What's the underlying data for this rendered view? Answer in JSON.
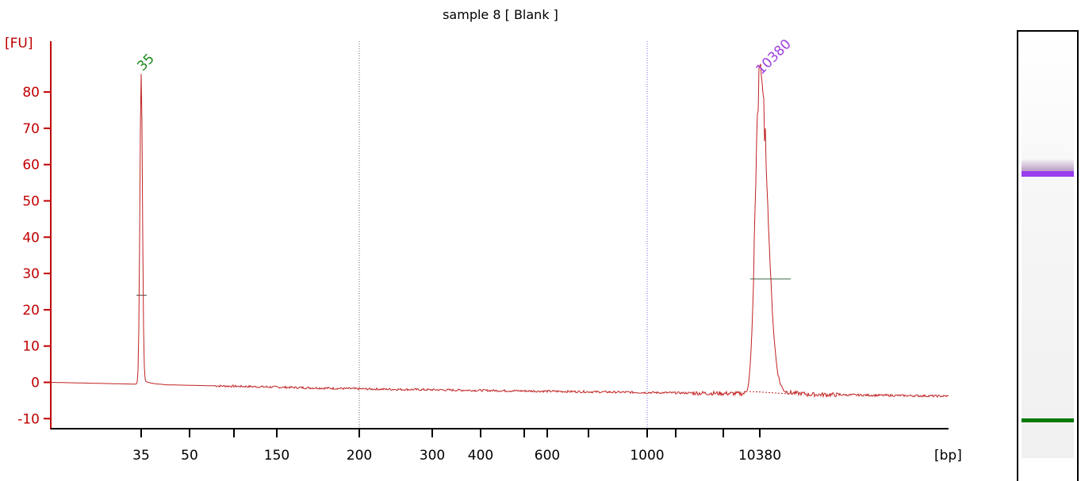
{
  "chart_data": {
    "type": "line",
    "title": "sample 8  [ Blank ]",
    "ylabel": "[FU]",
    "xlabel": "[bp]",
    "ylim": [
      -12,
      95
    ],
    "yticks": [
      -10,
      0,
      10,
      20,
      30,
      40,
      50,
      60,
      70,
      80
    ],
    "xticks_labeled": [
      "35",
      "50",
      "150",
      "200",
      "300",
      "400",
      "600",
      "1000",
      "10380"
    ],
    "grid": false,
    "x_axis_note": "migration-time axis; labels are base-pair sizes",
    "series": [
      {
        "values_profile": [
          {
            "x": "start",
            "y": 0
          },
          {
            "x": "35",
            "y": 85
          },
          {
            "x": "200",
            "y": -1.8
          },
          {
            "x": "1000",
            "y": -2.8
          },
          {
            "x": "10380",
            "y": 84
          },
          {
            "x": "end",
            "y": -3.8
          }
        ]
      }
    ],
    "peaks": [
      {
        "label": "35",
        "height": 85,
        "color": "#1a8a1a"
      },
      {
        "label": "10380",
        "height": 84,
        "color": "#a040e0"
      }
    ],
    "markers": [
      "200",
      "1000"
    ],
    "colors": {
      "trace": "#c02020",
      "axis": "#c00000",
      "lower_marker": "#1a8a1a",
      "upper_marker": "#a040e0",
      "marker_200_line": "#666666",
      "marker_1000_line": "#6a6af0"
    }
  },
  "gel": {
    "upper_band_color": "#9a3cf0",
    "lower_band_color": "#0a7a0a"
  }
}
